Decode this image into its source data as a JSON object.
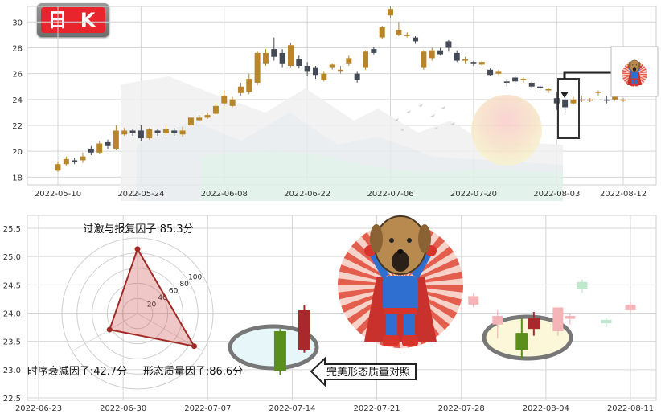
{
  "badge_label": "日 K",
  "colors": {
    "up": "#b8862a",
    "down": "#444a56",
    "grid": "#d6d6d6",
    "axis": "#bbbbbb",
    "green": "#5a8f1e",
    "red": "#a8282c",
    "pink": "#f5b4b8",
    "mint": "#bde8cc",
    "radar_fill": "#c9524f",
    "radar_stroke": "#a02a25"
  },
  "chart_data": [
    {
      "type": "candlestick",
      "title": "",
      "ylim": [
        17.4,
        31.2
      ],
      "yticks": [
        18,
        20,
        22,
        24,
        26,
        28,
        30
      ],
      "xtick_labels": [
        "2022-05-10",
        "2022-05-24",
        "2022-06-08",
        "2022-06-22",
        "2022-07-06",
        "2022-07-20",
        "2022-08-03",
        "2022-08-12"
      ],
      "xtick_index": [
        0,
        10,
        20,
        30,
        40,
        50,
        60,
        68
      ],
      "candles": [
        [
          18.5,
          19.0,
          18.4,
          19.2
        ],
        [
          19.0,
          19.4,
          18.9,
          19.6
        ],
        [
          19.3,
          19.2,
          19.0,
          19.5
        ],
        [
          19.3,
          19.6,
          19.1,
          19.9
        ],
        [
          20.2,
          19.9,
          19.7,
          20.4
        ],
        [
          19.9,
          20.6,
          19.8,
          20.8
        ],
        [
          20.7,
          20.4,
          20.2,
          20.9
        ],
        [
          20.2,
          21.6,
          20.1,
          22.0
        ],
        [
          21.3,
          21.6,
          21.2,
          21.8
        ],
        [
          21.6,
          21.4,
          21.2,
          21.7
        ],
        [
          21.6,
          21.0,
          20.8,
          22.0
        ],
        [
          21.0,
          21.7,
          20.9,
          21.8
        ],
        [
          21.6,
          21.4,
          21.2,
          21.7
        ],
        [
          21.4,
          21.7,
          21.2,
          22.0
        ],
        [
          21.6,
          21.4,
          21.2,
          21.8
        ],
        [
          21.3,
          21.6,
          21.1,
          21.9
        ],
        [
          22.0,
          22.6,
          21.9,
          22.7
        ],
        [
          22.4,
          22.6,
          22.3,
          22.8
        ],
        [
          22.6,
          22.8,
          22.5,
          23.0
        ],
        [
          22.9,
          23.5,
          22.8,
          23.7
        ],
        [
          23.7,
          24.3,
          23.5,
          24.7
        ],
        [
          23.5,
          24.0,
          23.4,
          24.2
        ],
        [
          24.5,
          25.0,
          24.3,
          25.3
        ],
        [
          24.6,
          25.6,
          24.4,
          26.0
        ],
        [
          25.3,
          27.6,
          25.1,
          27.7
        ],
        [
          26.8,
          27.6,
          26.6,
          27.9
        ],
        [
          27.9,
          27.3,
          27.0,
          28.8
        ],
        [
          27.6,
          26.8,
          26.5,
          27.9
        ],
        [
          26.6,
          28.2,
          26.5,
          28.4
        ],
        [
          27.1,
          26.6,
          26.4,
          27.4
        ],
        [
          26.6,
          26.2,
          25.8,
          26.9
        ],
        [
          26.5,
          25.9,
          25.6,
          26.6
        ],
        [
          25.5,
          26.0,
          25.4,
          26.2
        ],
        [
          26.5,
          26.7,
          26.3,
          26.8
        ],
        [
          26.3,
          26.3,
          26.0,
          26.6
        ],
        [
          26.8,
          27.2,
          26.6,
          27.4
        ],
        [
          26.0,
          25.5,
          25.3,
          26.2
        ],
        [
          26.5,
          27.7,
          26.3,
          27.8
        ],
        [
          27.9,
          27.6,
          27.5,
          28.1
        ],
        [
          28.8,
          29.6,
          28.7,
          29.7
        ],
        [
          30.5,
          31.0,
          30.3,
          31.2
        ],
        [
          29.0,
          29.4,
          28.9,
          30.0
        ],
        [
          29.0,
          29.0,
          28.8,
          29.2
        ],
        [
          28.8,
          28.5,
          28.3,
          28.9
        ],
        [
          26.5,
          27.7,
          26.3,
          27.8
        ],
        [
          27.2,
          27.8,
          27.0,
          28.0
        ],
        [
          27.8,
          27.5,
          27.4,
          28.0
        ],
        [
          28.5,
          28.0,
          27.7,
          28.6
        ],
        [
          27.6,
          27.0,
          26.9,
          27.8
        ],
        [
          27.0,
          27.1,
          26.8,
          27.3
        ],
        [
          26.9,
          26.8,
          26.6,
          27.0
        ],
        [
          26.7,
          26.9,
          26.6,
          27.0
        ],
        [
          26.3,
          25.9,
          25.8,
          26.4
        ],
        [
          26.0,
          26.2,
          25.9,
          26.3
        ],
        [
          25.4,
          25.3,
          25.0,
          25.6
        ],
        [
          25.7,
          25.4,
          25.2,
          25.8
        ],
        [
          25.5,
          25.6,
          25.3,
          25.7
        ],
        [
          25.3,
          25.0,
          24.9,
          25.4
        ],
        [
          25.0,
          24.9,
          24.7,
          25.1
        ],
        [
          24.7,
          24.8,
          24.5,
          24.9
        ],
        [
          24.1,
          23.7,
          23.2,
          24.6
        ],
        [
          24.0,
          23.4,
          23.0,
          24.2
        ],
        [
          23.7,
          24.0,
          23.6,
          24.2
        ],
        [
          24.0,
          24.0,
          23.8,
          24.3
        ],
        [
          24.0,
          24.0,
          23.8,
          24.1
        ],
        [
          24.6,
          24.6,
          24.3,
          24.7
        ],
        [
          24.0,
          23.9,
          23.7,
          24.3
        ],
        [
          24.0,
          24.2,
          23.9,
          24.4
        ],
        [
          24.0,
          24.0,
          23.8,
          24.1
        ]
      ]
    },
    {
      "type": "candlestick",
      "title": "",
      "ylim": [
        22.5,
        25.6
      ],
      "yticks": [
        22.5,
        23.0,
        23.5,
        24.0,
        24.5,
        25.0,
        25.5
      ],
      "xtick_labels": [
        "2022-06-23",
        "2022-06-30",
        "2022-07-07",
        "2022-07-14",
        "2022-07-21",
        "2022-07-28",
        "2022-08-04",
        "2022-08-11"
      ],
      "candles": [
        {
          "x": "2022-07-13",
          "open": 22.98,
          "close": 23.68,
          "low": 22.9,
          "high": 23.72,
          "color": "green"
        },
        {
          "x": "2022-07-15",
          "open": 23.35,
          "close": 24.05,
          "low": 23.3,
          "high": 24.15,
          "color": "red"
        },
        {
          "x": "2022-08-02",
          "open": 23.35,
          "close": 23.65,
          "low": 23.2,
          "high": 23.9,
          "color": "green"
        },
        {
          "x": "2022-08-03",
          "open": 23.72,
          "close": 23.92,
          "low": 23.6,
          "high": 24.02,
          "color": "red"
        },
        {
          "x": "2022-08-05",
          "open": 23.68,
          "close": 24.1,
          "low": 23.6,
          "high": 24.1,
          "color": "pink"
        },
        {
          "x": "2022-07-31",
          "open": 23.8,
          "close": 23.95,
          "low": 23.55,
          "high": 24.05,
          "color": "pink"
        },
        {
          "x": "2022-08-06",
          "open": 23.9,
          "close": 23.95,
          "low": 23.8,
          "high": 24.0,
          "color": "pink"
        },
        {
          "x": "2022-08-11",
          "open": 24.05,
          "close": 24.15,
          "low": 24.0,
          "high": 24.2,
          "color": "pink"
        },
        {
          "x": "2022-08-09",
          "open": 23.82,
          "close": 23.88,
          "low": 23.75,
          "high": 23.92,
          "color": "mint"
        },
        {
          "x": "2022-08-07",
          "open": 24.42,
          "close": 24.55,
          "low": 24.35,
          "high": 24.6,
          "color": "mint"
        },
        {
          "x": "2022-07-29",
          "open": 24.15,
          "close": 24.3,
          "low": 24.1,
          "high": 24.35,
          "color": "pink"
        }
      ]
    },
    {
      "type": "radar",
      "title": "",
      "r_max": 100,
      "r_ticks": [
        20,
        40,
        60,
        80,
        100
      ],
      "axes": [
        {
          "label": "过激与报复因子:85.3分",
          "value": 85.3
        },
        {
          "label": "形态质量因子:86.6分",
          "value": 86.6
        },
        {
          "label": "时序衰减因子:42.7分",
          "value": 42.7
        }
      ]
    }
  ],
  "callout_label": "完美形态质量对照"
}
